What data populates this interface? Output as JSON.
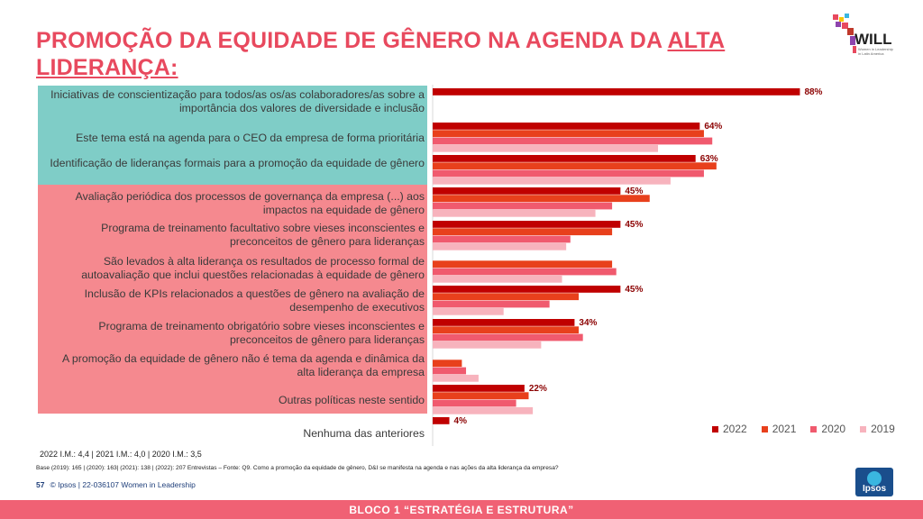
{
  "title_line1": "PROMOÇÃO DA EQUIDADE DE GÊNERO NA AGENDA DA",
  "title_underline": "ALTA",
  "title_line2": "LIDERANÇA:",
  "logo": {
    "name": "WILL",
    "subtitle": "Women in Leadership in Latin America"
  },
  "chart_data": {
    "type": "bar",
    "orientation": "horizontal",
    "categories": [
      "Iniciativas de conscientização para todos/as os/as colaboradores/as sobre a importância dos valores de diversidade e inclusão",
      "Este tema está na agenda para o CEO da empresa de forma prioritária",
      "Identificação de lideranças formais para a promoção da equidade de gênero",
      "Avaliação periódica dos processos de governança da empresa (...) aos impactos na equidade de gênero",
      "Programa de treinamento facultativo sobre vieses inconscientes e preconceitos de gênero para lideranças",
      "São levados à alta liderança os resultados de processo formal de autoavaliação que inclui questões relacionadas à equidade de gênero",
      "Inclusão de KPIs relacionados a questões de gênero na avaliação de desempenho de executivos",
      "Programa de treinamento obrigatório sobre vieses inconscientes e preconceitos de gênero para lideranças",
      "A promoção da equidade de gênero não é tema da agenda e dinâmica da alta liderança da empresa",
      "Outras políticas neste sentido",
      "Nenhuma das anteriores"
    ],
    "series": [
      {
        "name": "2022",
        "color": "#c00000",
        "values": [
          88,
          64,
          63,
          45,
          45,
          null,
          45,
          34,
          null,
          22,
          4
        ],
        "labels": [
          "88%",
          "64%",
          "63%",
          "45%",
          "45%",
          "",
          "45%",
          "34%",
          "",
          "22%",
          "4%"
        ]
      },
      {
        "name": "2021",
        "color": "#e8401c",
        "values": [
          null,
          65,
          68,
          52,
          43,
          43,
          35,
          35,
          7,
          23,
          null
        ]
      },
      {
        "name": "2020",
        "color": "#f05a6e",
        "values": [
          null,
          67,
          65,
          43,
          33,
          44,
          28,
          36,
          8,
          20,
          null
        ]
      },
      {
        "name": "2019",
        "color": "#f7b3bd",
        "values": [
          null,
          54,
          57,
          39,
          32,
          31,
          17,
          26,
          11,
          24,
          null
        ]
      }
    ],
    "xlim": [
      0,
      100
    ]
  },
  "im_line": "2022 I.M.: 4,4 | 2021 I.M.: 4,0 | 2020 I.M.: 3,5",
  "base_note": "Base (2019): 165 | (2020): 163| (2021): 138 | (2022): 207 Entrevistas – Fonte: Q9. Como a promoção da equidade de gênero, D&I se manifesta na agenda e nas ações da alta liderança da empresa?",
  "page_number": "57",
  "footer_text": "© Ipsos | 22-036107 Women in Leadership",
  "ipsos_label": "Ipsos",
  "bottom_bar": "BLOCO 1 “ESTRATÉGIA E ESTRUTURA”"
}
